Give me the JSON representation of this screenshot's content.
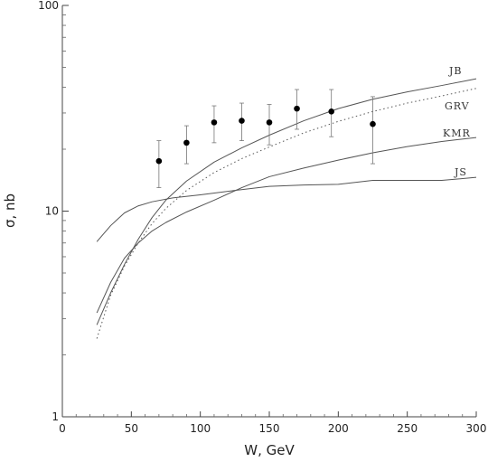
{
  "chart_data": {
    "type": "line",
    "xlabel": "W, GeV",
    "ylabel": "σ, nb",
    "xlim": [
      0,
      300
    ],
    "ylim": [
      1,
      100
    ],
    "y_scale": "log",
    "grid": false,
    "x_ticks": [
      {
        "value": 0,
        "label": "0"
      },
      {
        "value": 50,
        "label": "50"
      },
      {
        "value": 100,
        "label": "100"
      },
      {
        "value": 150,
        "label": "150"
      },
      {
        "value": 200,
        "label": "200"
      },
      {
        "value": 250,
        "label": "250"
      },
      {
        "value": 300,
        "label": "300"
      }
    ],
    "y_ticks": [
      {
        "value": 1,
        "label": "1"
      },
      {
        "value": 10,
        "label": "10"
      },
      {
        "value": 100,
        "label": "100"
      }
    ],
    "series": [
      {
        "name": "JB",
        "style": "solid",
        "color": "#555555",
        "x": [
          25,
          35,
          45,
          55,
          65,
          75,
          90,
          110,
          130,
          150,
          175,
          200,
          225,
          250,
          275,
          300
        ],
        "y": [
          2.8,
          4.0,
          5.5,
          7.3,
          9.3,
          11.3,
          14.0,
          17.3,
          20.3,
          23.4,
          27.5,
          31.5,
          35.0,
          38.0,
          40.8,
          44.0
        ]
      },
      {
        "name": "GRV",
        "style": "dotted",
        "color": "#555555",
        "x": [
          25,
          35,
          45,
          55,
          65,
          75,
          90,
          110,
          130,
          150,
          175,
          200,
          225,
          250,
          275,
          300
        ],
        "y": [
          2.4,
          3.9,
          5.4,
          7.0,
          8.7,
          10.3,
          12.6,
          15.4,
          18.0,
          20.5,
          24.0,
          27.3,
          30.5,
          33.5,
          36.3,
          39.5
        ]
      },
      {
        "name": "KMR",
        "style": "solid",
        "color": "#555555",
        "x": [
          25,
          35,
          45,
          55,
          65,
          75,
          90,
          110,
          130,
          150,
          175,
          200,
          225,
          250,
          275,
          300
        ],
        "y": [
          3.2,
          4.5,
          5.9,
          7.0,
          8.0,
          8.8,
          9.9,
          11.3,
          13.0,
          14.7,
          16.2,
          17.7,
          19.2,
          20.6,
          21.8,
          22.8
        ]
      },
      {
        "name": "JS",
        "style": "solid",
        "color": "#555555",
        "x": [
          25,
          35,
          45,
          55,
          65,
          80,
          100,
          125,
          150,
          175,
          200,
          225,
          250,
          275,
          300
        ],
        "y": [
          7.1,
          8.5,
          9.8,
          10.6,
          11.1,
          11.6,
          12.0,
          12.6,
          13.2,
          13.4,
          13.5,
          14.1,
          14.1,
          14.1,
          14.6
        ]
      }
    ],
    "points": {
      "marker": "filled-circle",
      "color": "#000000",
      "x": [
        70,
        90,
        110,
        130,
        150,
        170,
        195,
        225
      ],
      "y": [
        17.5,
        21.5,
        27.0,
        27.5,
        27.0,
        31.5,
        30.5,
        26.5
      ],
      "err_low": [
        13.0,
        17.0,
        21.5,
        22.0,
        21.0,
        25.0,
        23.0,
        17.0
      ],
      "err_high": [
        22.0,
        26.0,
        32.5,
        33.5,
        33.0,
        39.0,
        39.0,
        36.0
      ]
    }
  }
}
